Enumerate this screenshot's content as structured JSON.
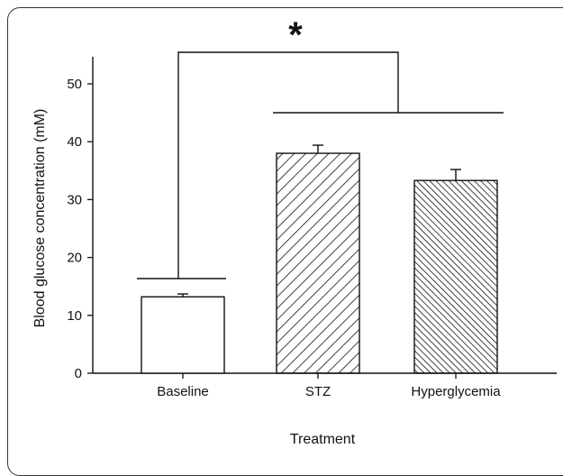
{
  "chart_data": {
    "type": "bar",
    "categories": [
      "Baseline",
      "STZ",
      "Hyperglycemia"
    ],
    "values": [
      13.2,
      38.0,
      33.3
    ],
    "errors": [
      0.5,
      1.4,
      1.9
    ],
    "fills": [
      "none",
      "forward-diagonal-hatch",
      "backward-diagonal-hatch"
    ],
    "xlabel": "Treatment",
    "ylabel": "Blood glucose concentration (mM)",
    "ylim": [
      0,
      55
    ],
    "yticks": [
      0,
      10,
      20,
      30,
      40,
      50
    ],
    "grid": false,
    "legend": "none",
    "annotation": {
      "text": "*",
      "meaning": "significant difference between Baseline and the STZ / Hyperglycemia groups"
    },
    "colors": {
      "axis": "#111111",
      "bar_fill": "#ffffff",
      "hatch": "#111111"
    }
  }
}
